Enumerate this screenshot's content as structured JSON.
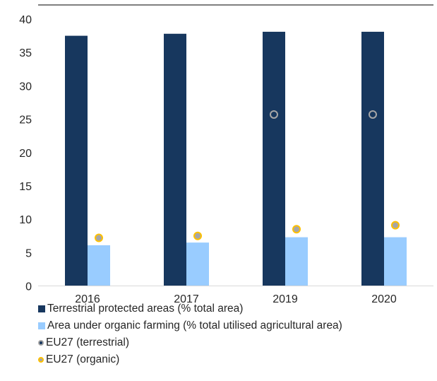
{
  "chart_data": {
    "type": "bar",
    "title": "",
    "xlabel": "",
    "ylabel": "",
    "categories": [
      "2016",
      "2017",
      "2019",
      "2020"
    ],
    "ylim": [
      0,
      40
    ],
    "yticks": [
      0,
      5,
      10,
      15,
      20,
      25,
      30,
      35,
      40
    ],
    "grid": false,
    "legend_position": "bottom",
    "series": [
      {
        "name": "Terrestrial protected areas (% total area)",
        "kind": "bar",
        "color": "#17375e",
        "values": [
          37.5,
          37.8,
          38.1,
          38.1
        ]
      },
      {
        "name": "Area under organic farming (% total utilised agricultural area)",
        "kind": "bar",
        "color": "#99ccff",
        "values": [
          6.1,
          6.5,
          7.3,
          7.3
        ]
      },
      {
        "name": "EU27 (terrestrial)",
        "kind": "point",
        "color": "#17375e",
        "edge_color": "#a6a6a6",
        "values": [
          null,
          null,
          25.7,
          25.7
        ]
      },
      {
        "name": "EU27 (organic)",
        "kind": "point",
        "color": "#a6a6a6",
        "edge_color": "#ffc000",
        "values": [
          7.2,
          7.5,
          8.5,
          9.1
        ]
      }
    ]
  }
}
